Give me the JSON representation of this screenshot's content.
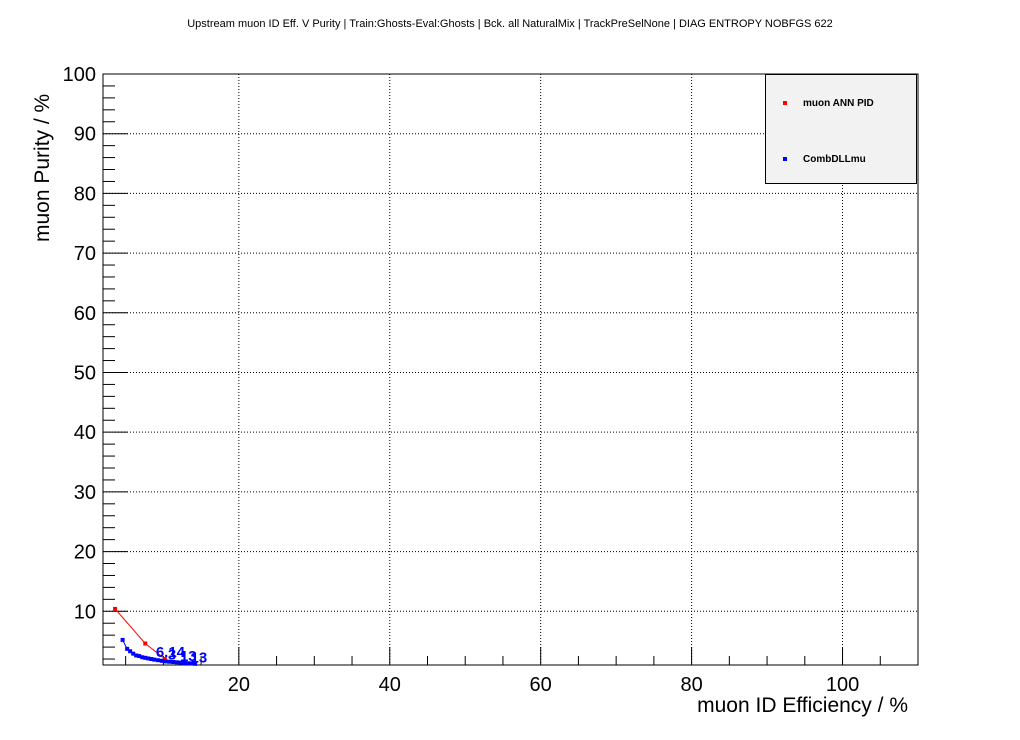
{
  "title": "Upstream muon ID Eff. V Purity | Train:Ghosts-Eval:Ghosts | Bck. all NaturalMix | TrackPreSelNone | DIAG ENTROPY NOBFGS 622",
  "chart_data": {
    "type": "line",
    "title": "Upstream muon ID Eff. V Purity | Train:Ghosts-Eval:Ghosts | Bck. all NaturalMix | TrackPreSelNone | DIAG ENTROPY NOBFGS 622",
    "xlabel": "muon ID Efficiency / %",
    "ylabel": "muon Purity / %",
    "xlim": [
      2,
      110
    ],
    "ylim": [
      1,
      100
    ],
    "x_ticks": [
      20,
      40,
      60,
      80,
      100
    ],
    "y_ticks": [
      10,
      20,
      30,
      40,
      50,
      60,
      70,
      80,
      90,
      100
    ],
    "grid": true,
    "legend_position": "top-right",
    "series": [
      {
        "name": "muon ANN PID",
        "color": "#ff0000",
        "points": [
          [
            3.6,
            10.4
          ],
          [
            7.6,
            4.6
          ],
          [
            10.2,
            2.0
          ]
        ]
      },
      {
        "name": "CombDLLmu",
        "color": "#0000ff",
        "points": [
          [
            4.6,
            5.2
          ],
          [
            5.2,
            3.7
          ],
          [
            5.6,
            3.3
          ],
          [
            6.0,
            2.9
          ],
          [
            6.4,
            2.6
          ],
          [
            6.8,
            2.5
          ],
          [
            7.2,
            2.3
          ],
          [
            7.6,
            2.2
          ],
          [
            8.0,
            2.1
          ],
          [
            8.4,
            2.0
          ],
          [
            8.8,
            1.9
          ],
          [
            9.3,
            1.8
          ],
          [
            9.8,
            1.7
          ],
          [
            10.3,
            1.6
          ],
          [
            10.8,
            1.55
          ],
          [
            11.3,
            1.5
          ],
          [
            11.8,
            1.45
          ],
          [
            12.3,
            1.4
          ],
          [
            12.8,
            1.35
          ],
          [
            13.3,
            1.3
          ],
          [
            13.8,
            1.25
          ],
          [
            14.2,
            1.2
          ]
        ]
      }
    ],
    "annotations": [
      {
        "text": "6.14",
        "x": 9.0,
        "y": 2.3,
        "color": "#0000ff"
      },
      {
        "text": "3",
        "x": 10.6,
        "y": 1.9,
        "color": "#0000ff"
      },
      {
        "text": "13",
        "x": 12.2,
        "y": 1.7,
        "color": "#0000ff"
      },
      {
        "text": "13",
        "x": 13.6,
        "y": 1.4,
        "color": "#0000ff"
      }
    ]
  }
}
